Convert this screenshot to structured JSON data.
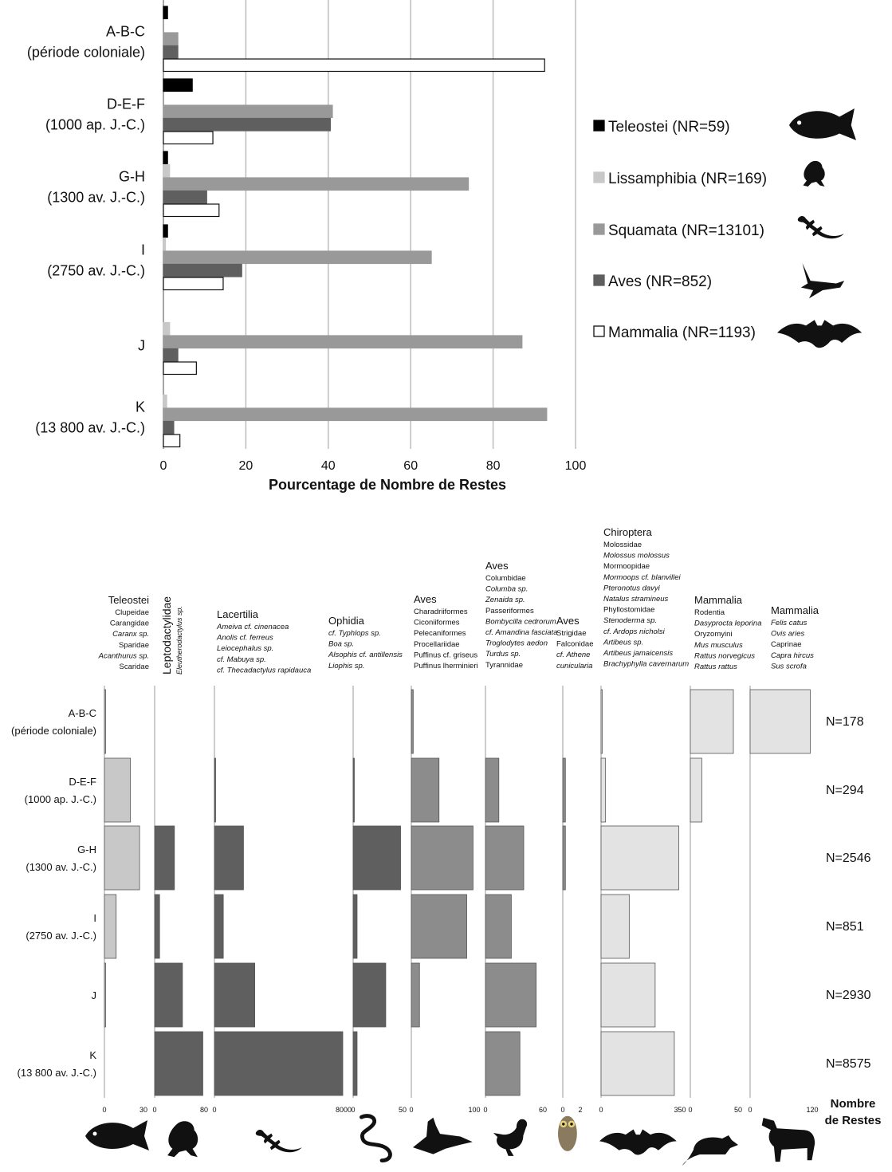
{
  "chart_data": [
    {
      "type": "bar",
      "orientation": "horizontal",
      "xlabel": "Pourcentage de Nombre de Restes",
      "xlim": [
        0,
        100
      ],
      "xticks": [
        "0",
        "20",
        "40",
        "60",
        "80",
        "100"
      ],
      "grid": true,
      "legend_position": "right",
      "categories": [
        {
          "name": "A-B-C",
          "period": "(période coloniale)"
        },
        {
          "name": "D-E-F",
          "period": "(1000 ap. J.-C.)"
        },
        {
          "name": "G-H",
          "period": "(1300 av. J.-C.)"
        },
        {
          "name": "I",
          "period": "(2750 av. J.-C.)"
        },
        {
          "name": "J",
          "period": ""
        },
        {
          "name": "K",
          "period": "(13 800 av. J.-C.)"
        }
      ],
      "series": [
        {
          "name": "Teleostei (NR=59)",
          "color": "#000000",
          "values": [
            1,
            7,
            1,
            1,
            0,
            0
          ],
          "icon": "fish-icon"
        },
        {
          "name": "Lissamphibia (NR=169)",
          "color": "#c8c8c8",
          "values": [
            0,
            0,
            1.5,
            0.5,
            1.5,
            0.8
          ],
          "icon": "frog-icon"
        },
        {
          "name": "Squamata (NR=13101)",
          "color": "#999999",
          "values": [
            3.5,
            41,
            74,
            65,
            87,
            93
          ],
          "icon": "lizard-icon"
        },
        {
          "name": "Aves (NR=852)",
          "color": "#5f5f5f",
          "values": [
            3.5,
            40.5,
            10.5,
            19,
            3.5,
            2.5
          ],
          "icon": "bird-icon"
        },
        {
          "name": "Mammalia (NR=1193)",
          "color": "#ffffff",
          "values": [
            92.5,
            12,
            13.5,
            14.5,
            8,
            4
          ],
          "icon": "bat-icon"
        }
      ]
    },
    {
      "type": "bar",
      "orientation": "horizontal",
      "subtype": "small-multiples",
      "xlabel": "Nombre de Restes",
      "categories": [
        {
          "name": "A-B-C",
          "period": "(période coloniale)",
          "total": "N=178"
        },
        {
          "name": "D-E-F",
          "period": "(1000 ap. J.-C.)",
          "total": "N=294"
        },
        {
          "name": "G-H",
          "period": "(1300 av. J.-C.)",
          "total": "N=2546"
        },
        {
          "name": "I",
          "period": "(2750 av. J.-C.)",
          "total": "N=851"
        },
        {
          "name": "J",
          "period": "",
          "total": "N=2930"
        },
        {
          "name": "K",
          "period": "(13 800 av. J.-C.)",
          "total": "N=8575"
        }
      ],
      "panels": [
        {
          "title": "Teleostei",
          "taxa": [
            [
              "Clupeidae",
              false
            ],
            [
              "Carangidae",
              false
            ],
            [
              "Caranx sp.",
              true
            ],
            [
              "Sparidae",
              false
            ],
            [
              "Acanthurus sp.",
              true
            ],
            [
              "Scaridae",
              false
            ]
          ],
          "max": 30,
          "tick_min": "0",
          "tick_max": "30",
          "color": "#c8c8c8",
          "values": [
            0.5,
            20,
            27,
            9,
            0.5,
            0
          ],
          "icon": "fish-icon"
        },
        {
          "title": "Leptodactylidae",
          "subtitle": "Eleutherodactylus sp.",
          "vertical": true,
          "taxa": [],
          "max": 80,
          "tick_min": "0",
          "tick_max": "80",
          "color": "#5f5f5f",
          "values": [
            0,
            0,
            32,
            8,
            45,
            78
          ],
          "icon": "frog-icon"
        },
        {
          "title": "Lacertilia",
          "taxa": [
            [
              "Ameiva cf. cinenacea",
              true
            ],
            [
              "Anolis cf. ferreus",
              true
            ],
            [
              "Leiocephalus sp.",
              true
            ],
            [
              "cf. Mabuya sp.",
              true
            ],
            [
              "cf. Thecadactylus rapidauca",
              true
            ]
          ],
          "max": 8000,
          "tick_min": "0",
          "tick_max": "8000",
          "color": "#5f5f5f",
          "values": [
            0,
            50,
            1800,
            550,
            2500,
            7950
          ],
          "icon": "lizard-icon"
        },
        {
          "title": "Ophidia",
          "taxa": [
            [
              "cf. Typhlops sp.",
              true
            ],
            [
              "Boa sp.",
              true
            ],
            [
              "Alsophis cf. antillensis",
              true
            ],
            [
              "Liophis sp.",
              true
            ]
          ],
          "max": 50,
          "tick_min": "0",
          "tick_max": "50",
          "color": "#5f5f5f",
          "values": [
            0,
            1,
            48,
            4,
            33,
            4
          ],
          "icon": "snake-icon"
        },
        {
          "title": "Aves",
          "taxa": [
            [
              "Charadriiformes",
              false
            ],
            [
              "Ciconiiformes",
              false
            ],
            [
              "Pelecaniformes",
              false
            ],
            [
              "Procellariidae",
              false
            ],
            [
              "Puffinus cf. griseus",
              false
            ],
            [
              "Puffinus lherminieri",
              false
            ]
          ],
          "max": 100,
          "tick_min": "0",
          "tick_max": "100",
          "color": "#8c8c8c",
          "values": [
            3,
            44,
            98,
            88,
            13,
            0
          ],
          "icon": "frigatebird-icon"
        },
        {
          "title": "Aves",
          "taxa": [
            [
              "Columbidae",
              false
            ],
            [
              "Columba sp.",
              true
            ],
            [
              "Zenaida sp.",
              true
            ],
            [
              "Passeriformes",
              false
            ],
            [
              "Bombycilla cedrorum",
              true
            ],
            [
              "cf. Amandina fasciata",
              true
            ],
            [
              "Troglodytes aedon",
              true
            ],
            [
              "Turdus sp.",
              true
            ],
            [
              "Tyrannidae",
              false
            ]
          ],
          "max": 60,
          "tick_min": "0",
          "tick_max": "60",
          "color": "#8c8c8c",
          "values": [
            0,
            14,
            40,
            27,
            53,
            36
          ],
          "icon": "duck-icon"
        },
        {
          "title": "Aves",
          "taxa": [
            [
              "Strigidae",
              false
            ],
            [
              "Falconidae",
              false
            ],
            [
              "cf. Athene",
              true
            ],
            [
              "cunicularia",
              true
            ]
          ],
          "max": 2,
          "tick_min": "0",
          "tick_max": "2",
          "color": "#8c8c8c",
          "values": [
            0,
            0.3,
            0.3,
            0,
            0,
            0
          ],
          "icon": "owl-icon"
        },
        {
          "title": "Chiroptera",
          "taxa": [
            [
              "Molossidae",
              false
            ],
            [
              "Molossus molossus",
              true
            ],
            [
              "Mormoopidae",
              false
            ],
            [
              "Mormoops cf. blanvillei",
              true
            ],
            [
              "Pteronotus davyi",
              true
            ],
            [
              "Natalus stramineus",
              true
            ],
            [
              "Phyllostomidae",
              false
            ],
            [
              "Stenoderma sp.",
              true
            ],
            [
              "cf. Ardops nicholsi",
              true
            ],
            [
              "Artibeus sp.",
              true
            ],
            [
              "Artibeus jamaicensis",
              true
            ],
            [
              "Brachyphylla cavernarum",
              true
            ]
          ],
          "max": 350,
          "tick_min": "0",
          "tick_max": "350",
          "color": "#e3e3e3",
          "values": [
            3,
            20,
            345,
            125,
            240,
            325
          ],
          "icon": "bat-icon"
        },
        {
          "title": "Mammalia",
          "taxa": [
            [
              "Rodentia",
              false
            ],
            [
              "Dasyprocta leporina",
              true
            ],
            [
              "Oryzomyini",
              false
            ],
            [
              "Mus musculus",
              true
            ],
            [
              "Rattus norvegicus",
              true
            ],
            [
              "Rattus rattus",
              true
            ]
          ],
          "max": 50,
          "tick_min": "0",
          "tick_max": "50",
          "color": "#e3e3e3",
          "values": [
            45,
            12,
            0,
            0,
            0,
            0
          ],
          "icon": "rat-icon"
        },
        {
          "title": "Mammalia",
          "taxa": [
            [
              "Felis catus",
              true
            ],
            [
              "Ovis aries",
              true
            ],
            [
              "Caprinae",
              false
            ],
            [
              "Capra hircus",
              true
            ],
            [
              "Sus scrofa",
              true
            ]
          ],
          "max": 120,
          "tick_min": "0",
          "tick_max": "120",
          "color": "#e3e3e3",
          "values": [
            116,
            0,
            0,
            0,
            0,
            0
          ],
          "icon": "dog-icon"
        }
      ]
    }
  ]
}
